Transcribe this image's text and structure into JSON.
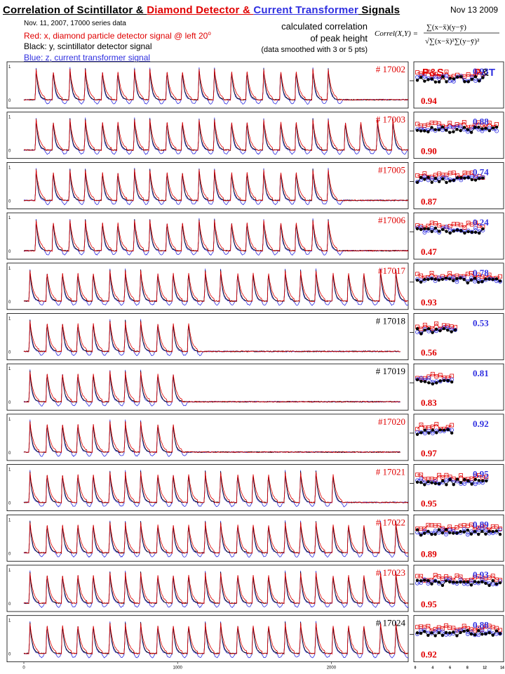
{
  "header": {
    "title_parts": [
      "Correlation of Scintillator & ",
      "Diamond Detector & ",
      "Current Transformer",
      " Signals"
    ],
    "title_colors": [
      "#000000",
      "#e00000",
      "#3030e0",
      "#000000"
    ],
    "date": "Nov 13 2009",
    "legend": {
      "line1": "Nov. 11, 2007,   17000 series data",
      "line2": "Red:   x, diamond particle detector signal @ left 20",
      "line2_sup": "o",
      "line3": "Black: y, scintillator detector signal",
      "line4": "Blue:  z, current transformer signal"
    },
    "calc": {
      "line1": "calculated correlation",
      "line2": "of peak height",
      "line3": "(data smoothed with 3 or 5 pts)"
    },
    "formula": {
      "lhs": "Correl(X,Y) =",
      "num": "∑(x−x̄)(y−ȳ)",
      "den": "√∑(x−x̄)²∑(y−ȳ)²"
    },
    "col_ps": "P&S",
    "col_pt_p": "P",
    "col_pt_amp": "&",
    "col_pt_t": "T"
  },
  "colors": {
    "red": "#e00000",
    "black": "#000000",
    "blue": "#3030e0"
  },
  "chart_data": {
    "type": "line",
    "xlim": [
      0,
      2500
    ],
    "ylim": [
      0,
      1
    ],
    "x_ticks": [
      "0",
      "1000",
      "2000"
    ],
    "y_ticks": [
      "0",
      "1"
    ],
    "series_names": [
      "Red: x, diamond particle detector signal",
      "Black: y, scintillator detector signal",
      "Blue: z, current transformer signal"
    ],
    "scatter_x_ticks": [
      "0",
      "4",
      "6",
      "8",
      "12",
      "14"
    ],
    "runs": [
      {
        "label": "# 17002",
        "label_color": "#e00000",
        "pulse_positions": [
          80,
          190,
          300,
          400,
          510,
          610,
          720,
          820,
          930,
          1030,
          1140,
          1240,
          1350,
          1450,
          1560,
          1670,
          1770,
          1880,
          1980
        ],
        "baseline_end": 2500,
        "ps": "0.94",
        "pt": "0.93",
        "ps_blue_n": 19
      },
      {
        "label": "# 17003",
        "label_color": "#e00000",
        "pulse_positions": [
          80,
          190,
          300,
          400,
          510,
          610,
          720,
          820,
          930,
          1030,
          1140,
          1240,
          1350,
          1450,
          1560,
          1670,
          1770,
          1880,
          1980,
          2090,
          2190,
          2300,
          2400
        ],
        "baseline_end": 2500,
        "ps": "0.90",
        "pt": "0.88",
        "ps_blue_n": 23
      },
      {
        "label": "#17005",
        "label_color": "#e00000",
        "pulse_positions": [
          80,
          190,
          300,
          400,
          510,
          610,
          720,
          820,
          930,
          1030,
          1140,
          1240,
          1350,
          1450,
          1560,
          1670,
          1770,
          1880,
          1980
        ],
        "baseline_end": 2500,
        "ps": "0.87",
        "pt": "0.74",
        "ps_blue_n": 19
      },
      {
        "label": "#17006",
        "label_color": "#e00000",
        "pulse_positions": [
          80,
          190,
          300,
          400,
          510,
          610,
          720,
          820,
          930,
          1030,
          1140,
          1240,
          1350,
          1450,
          1560,
          1670,
          1770,
          1880,
          1980
        ],
        "baseline_end": 2500,
        "ps": "0.47",
        "pt": "0.24",
        "ps_blue_n": 19
      },
      {
        "label": "#17017",
        "label_color": "#e00000",
        "pulse_positions": [
          40,
          150,
          250,
          350,
          450,
          560,
          660,
          760,
          870,
          970,
          1070,
          1180,
          1280,
          1390,
          1490,
          1590,
          1700,
          1800,
          1900,
          2010,
          2110,
          2210,
          2320,
          2420
        ],
        "baseline_end": 2500,
        "ps": "0.93",
        "pt": "0.78",
        "ps_blue_n": 24
      },
      {
        "label": "# 17018",
        "label_color": "#000000",
        "pulse_positions": [
          40,
          150,
          250,
          350,
          450,
          560,
          660,
          760,
          870,
          970,
          1070
        ],
        "baseline_end": 2450,
        "ps": "0.56",
        "pt": "0.53",
        "ps_blue_n": 11
      },
      {
        "label": "# 17019",
        "label_color": "#000000",
        "pulse_positions": [
          40,
          150,
          250,
          350,
          450,
          560,
          660,
          760,
          870,
          970
        ],
        "baseline_end": 2450,
        "ps": "0.83",
        "pt": "0.81",
        "ps_blue_n": 10
      },
      {
        "label": "#17020",
        "label_color": "#e00000",
        "pulse_positions": [
          40,
          150,
          250,
          350,
          450,
          560,
          660,
          760,
          870,
          970
        ],
        "baseline_end": 2450,
        "ps": "0.97",
        "pt": "0.92",
        "ps_blue_n": 10
      },
      {
        "label": "# 17021",
        "label_color": "#e00000",
        "pulse_positions": [
          40,
          150,
          250,
          350,
          450,
          560,
          660,
          760,
          870,
          970,
          1070,
          1180,
          1280,
          1390,
          1490,
          1590,
          1700,
          1800,
          1900,
          2010
        ],
        "baseline_end": 2500,
        "ps": "0.95",
        "pt": "0.95",
        "ps_blue_n": 20
      },
      {
        "label": "# 17022",
        "label_color": "#e00000",
        "pulse_positions": [
          40,
          150,
          250,
          350,
          450,
          560,
          660,
          760,
          870,
          970,
          1070,
          1180,
          1280,
          1390,
          1490,
          1590,
          1700,
          1800,
          1900,
          2010,
          2110,
          2210,
          2320,
          2420
        ],
        "baseline_end": 2500,
        "ps": "0.89",
        "pt": "0.89",
        "ps_blue_n": 24
      },
      {
        "label": "# 17023",
        "label_color": "#e00000",
        "pulse_positions": [
          40,
          150,
          250,
          350,
          450,
          560,
          660,
          760,
          870,
          970,
          1070,
          1180,
          1280,
          1390,
          1490,
          1590,
          1700,
          1800,
          1900,
          2010,
          2110,
          2210,
          2320,
          2420
        ],
        "baseline_end": 2500,
        "ps": "0.95",
        "pt": "0.93",
        "ps_blue_n": 24
      },
      {
        "label": "# 17024",
        "label_color": "#000000",
        "pulse_positions": [
          40,
          150,
          250,
          350,
          450,
          560,
          660,
          760,
          870,
          970,
          1070,
          1180,
          1280,
          1390,
          1490,
          1590,
          1700,
          1800,
          1900,
          2010,
          2110,
          2210,
          2320,
          2420
        ],
        "baseline_end": 2500,
        "ps": "0.92",
        "pt": "0.88",
        "ps_blue_n": 24
      }
    ]
  }
}
